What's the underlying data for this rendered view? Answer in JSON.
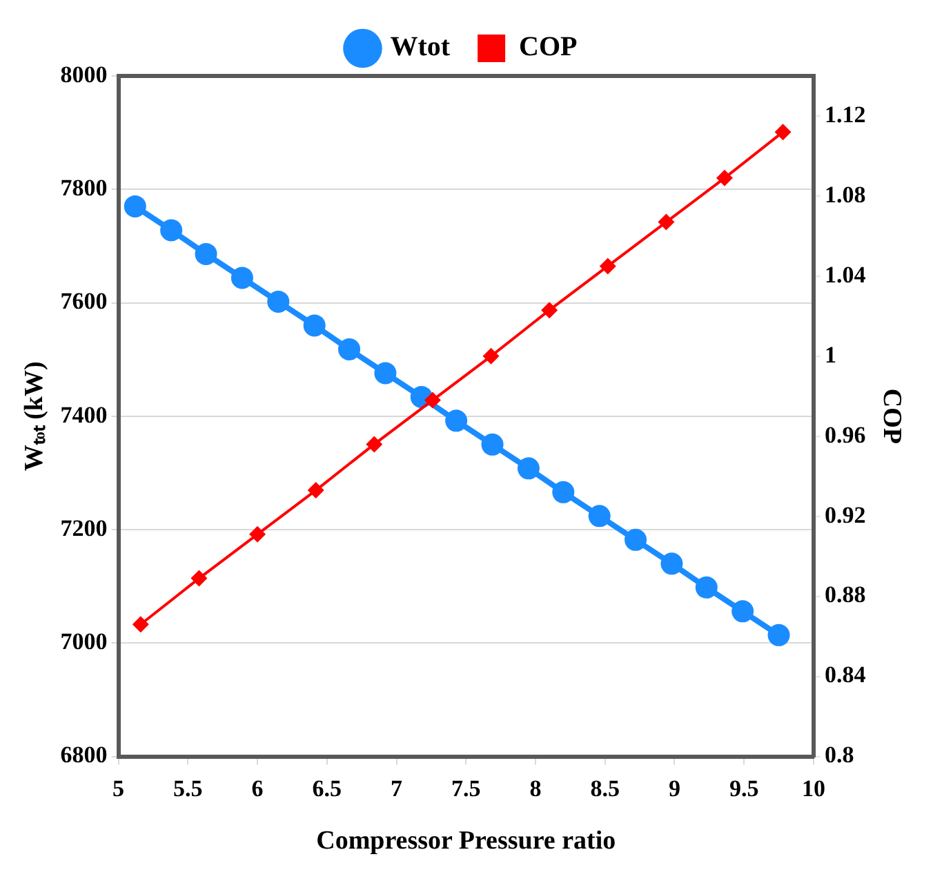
{
  "chart_data": {
    "type": "line",
    "xlabel": "Compressor Pressure ratio",
    "ylabel": "Wₜₒₜ (kW)",
    "y2label": "COP",
    "xlim": [
      5,
      10
    ],
    "xticks": [
      5,
      5.5,
      6,
      6.5,
      7,
      7.5,
      8,
      8.5,
      9,
      9.5,
      10
    ],
    "ylim": [
      6800,
      8000
    ],
    "yticks": [
      6800,
      7000,
      7200,
      7400,
      7600,
      7800,
      8000
    ],
    "y2lim": [
      0.8,
      1.14
    ],
    "y2ticks": [
      0.8,
      0.84,
      0.88,
      0.92,
      0.96,
      1,
      1.04,
      1.08,
      1.12
    ],
    "grid": "y",
    "legend": "top",
    "series": [
      {
        "name": "Wtot",
        "color": "#1a8cff",
        "marker": "circle",
        "x": [
          5.12,
          5.38,
          5.63,
          5.89,
          6.15,
          6.41,
          6.66,
          6.92,
          7.18,
          7.43,
          7.69,
          7.95,
          8.2,
          8.46,
          8.72,
          8.98,
          9.23,
          9.49,
          9.75
        ],
        "values": [
          7770,
          7728,
          7686,
          7644,
          7602,
          7560,
          7518,
          7476,
          7434,
          7392,
          7350,
          7308,
          7266,
          7224,
          7182,
          7140,
          7098,
          7056,
          7014
        ]
      },
      {
        "name": "COP",
        "color": "#ff0000",
        "marker": "diamond",
        "axis": "y2",
        "x": [
          5.16,
          5.58,
          6.0,
          6.42,
          6.84,
          7.26,
          7.68,
          8.1,
          8.52,
          8.94,
          9.36,
          9.78
        ],
        "values": [
          0.866,
          0.889,
          0.911,
          0.933,
          0.956,
          0.978,
          1.0,
          1.023,
          1.045,
          1.067,
          1.089,
          1.112
        ]
      }
    ]
  }
}
